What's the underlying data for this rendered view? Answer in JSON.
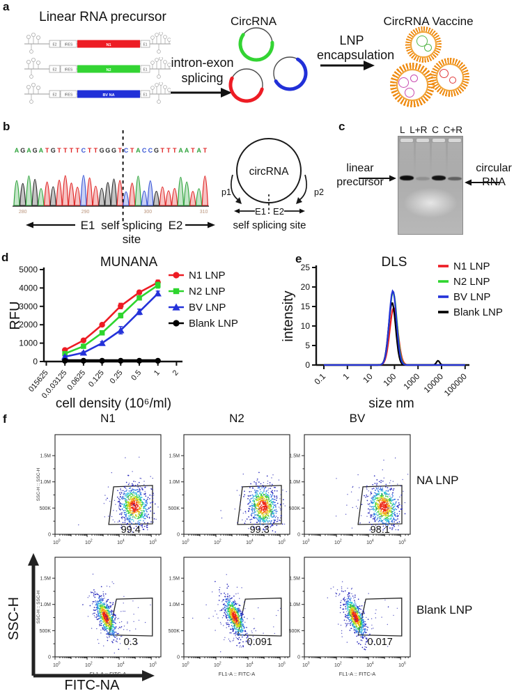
{
  "panel_labels": {
    "a": "a",
    "b": "b",
    "c": "c",
    "d": "d",
    "e": "e",
    "f": "f"
  },
  "panel_a": {
    "precursor_title": "Linear RNA precursor",
    "constructs": [
      {
        "left_box": "E2",
        "mid_box": "IRES",
        "insert_label": "N1",
        "insert_color": "#ed1c24",
        "right_box": "E1"
      },
      {
        "left_box": "E2",
        "mid_box": "IRES",
        "insert_label": "N2",
        "insert_color": "#33d433",
        "right_box": "E1"
      },
      {
        "left_box": "E2",
        "mid_box": "IRES",
        "insert_label": "BV NA",
        "insert_color": "#2130d8",
        "right_box": "E1"
      }
    ],
    "step1_line1": "intron-exon",
    "step1_line2": "splicing",
    "circ_title": "CircRNA",
    "circ_arc_colors": [
      "#33d433",
      "#ed1c24",
      "#2130d8"
    ],
    "step2_line1": "LNP",
    "step2_line2": "encapsulation",
    "vaccine_title": "CircRNA Vaccine",
    "lnp_shell_color": "#ef8c13",
    "cargo_colors": [
      "#55b54a",
      "#c84ab0",
      "#e03636"
    ]
  },
  "panel_b": {
    "sequence": "AGAGATGTTTTCTTGGGTCTACCGTTTAATAT",
    "splice_index": 18,
    "base_colors": {
      "A": "#2fa33c",
      "C": "#3a57d6",
      "G": "#2b2b2b",
      "T": "#e02424"
    },
    "position_labels": [
      "280",
      "290",
      "300",
      "310"
    ],
    "exon_left": "E1",
    "exon_mid": "self splicing",
    "exon_right": "E2",
    "site_word": "site",
    "circle_label": "circRNA",
    "p1": "p1",
    "p2": "p2",
    "circle_e1": "E1",
    "circle_e2": "E2",
    "circle_site": "self splicing site"
  },
  "panel_c": {
    "lanes": [
      "L",
      "L+R",
      "C",
      "C+R"
    ],
    "left_label_line1": "linear",
    "left_label_line2": "precursor",
    "right_label_line1": "circular",
    "right_label_line2": "RNA",
    "band_shades": [
      "#0e0e0e",
      "#909090",
      "#141414",
      "#606060"
    ]
  },
  "chart_data": [
    {
      "id": "munana",
      "type": "line",
      "title": "MUNANA",
      "ylabel": "RFU",
      "xlabel": "cell density (10⁶/ml)",
      "ylim": [
        0,
        5000
      ],
      "yticks": [
        0,
        1000,
        2000,
        3000,
        4000,
        5000
      ],
      "xtick_labels": [
        "015625",
        "0.0.03125",
        "0.0625",
        "0.125",
        "0.25",
        "0.5",
        "1",
        "2"
      ],
      "data_tick_indices": [
        1,
        2,
        3,
        4,
        5,
        6
      ],
      "series": [
        {
          "name": "N1 LNP",
          "color": "#ed1c24",
          "marker": "circle",
          "values": [
            620,
            1150,
            2000,
            3020,
            3760,
            4300
          ],
          "errors": [
            60,
            60,
            90,
            150,
            100,
            130
          ]
        },
        {
          "name": "N2 LNP",
          "color": "#2ed52e",
          "marker": "square",
          "values": [
            430,
            830,
            1560,
            2500,
            3460,
            4150
          ],
          "errors": [
            50,
            60,
            80,
            130,
            90,
            160
          ]
        },
        {
          "name": "BV LNP",
          "color": "#2432d9",
          "marker": "triangle",
          "values": [
            260,
            480,
            1000,
            1700,
            2700,
            3700
          ],
          "errors": [
            50,
            50,
            80,
            200,
            150,
            130
          ]
        },
        {
          "name": "Blank LNP",
          "color": "#000000",
          "marker": "circle",
          "values": [
            40,
            40,
            40,
            40,
            40,
            40
          ],
          "errors": [
            0,
            0,
            0,
            0,
            0,
            0
          ]
        }
      ]
    },
    {
      "id": "dls",
      "type": "line",
      "title": "DLS",
      "ylabel": "intensity",
      "xlabel": "size nm",
      "ylim": [
        0,
        25
      ],
      "yticks": [
        0,
        5,
        10,
        15,
        20,
        25
      ],
      "xlog_range": [
        -1,
        5
      ],
      "xtick_labels": [
        "0.1",
        "1",
        "10",
        "100",
        "1000",
        "10000",
        "100000"
      ],
      "series": [
        {
          "name": "N1 LNP",
          "color": "#ed1c24",
          "peaks": [
            {
              "center_log": 1.97,
              "sigma": 0.17,
              "height": 14.7
            }
          ]
        },
        {
          "name": "N2 LNP",
          "color": "#2ed52e",
          "peaks": [
            {
              "center_log": 1.94,
              "sigma": 0.16,
              "height": 18.8
            }
          ]
        },
        {
          "name": "BV LNP",
          "color": "#2432d9",
          "peaks": [
            {
              "center_log": 1.93,
              "sigma": 0.155,
              "height": 19.0
            }
          ]
        },
        {
          "name": "Blank LNP",
          "color": "#000000",
          "peaks": [
            {
              "center_log": 1.9,
              "sigma": 0.15,
              "height": 16.0
            },
            {
              "center_log": 3.85,
              "sigma": 0.07,
              "height": 1.1
            }
          ]
        }
      ]
    },
    {
      "id": "flow",
      "type": "flow-cytometry",
      "columns": [
        "N1",
        "N2",
        "BV"
      ],
      "rows": [
        "NA LNP",
        "Blank LNP"
      ],
      "yaxis_title": "SSC-H :: SSC-H",
      "xaxis_title": "FL1-A :: FITC-A",
      "ytick_labels": [
        "0",
        "500K",
        "1.0M",
        "1.5M"
      ],
      "xtick_exponents": [
        0,
        2,
        4,
        6
      ],
      "gate_percentages": [
        [
          "99.4",
          "99.3",
          "98.1"
        ],
        [
          "0.3",
          "0.091",
          "0.017"
        ]
      ],
      "big_y_arrow_label": "SSC-H",
      "big_x_arrow_label": "FITC-NA"
    }
  ]
}
